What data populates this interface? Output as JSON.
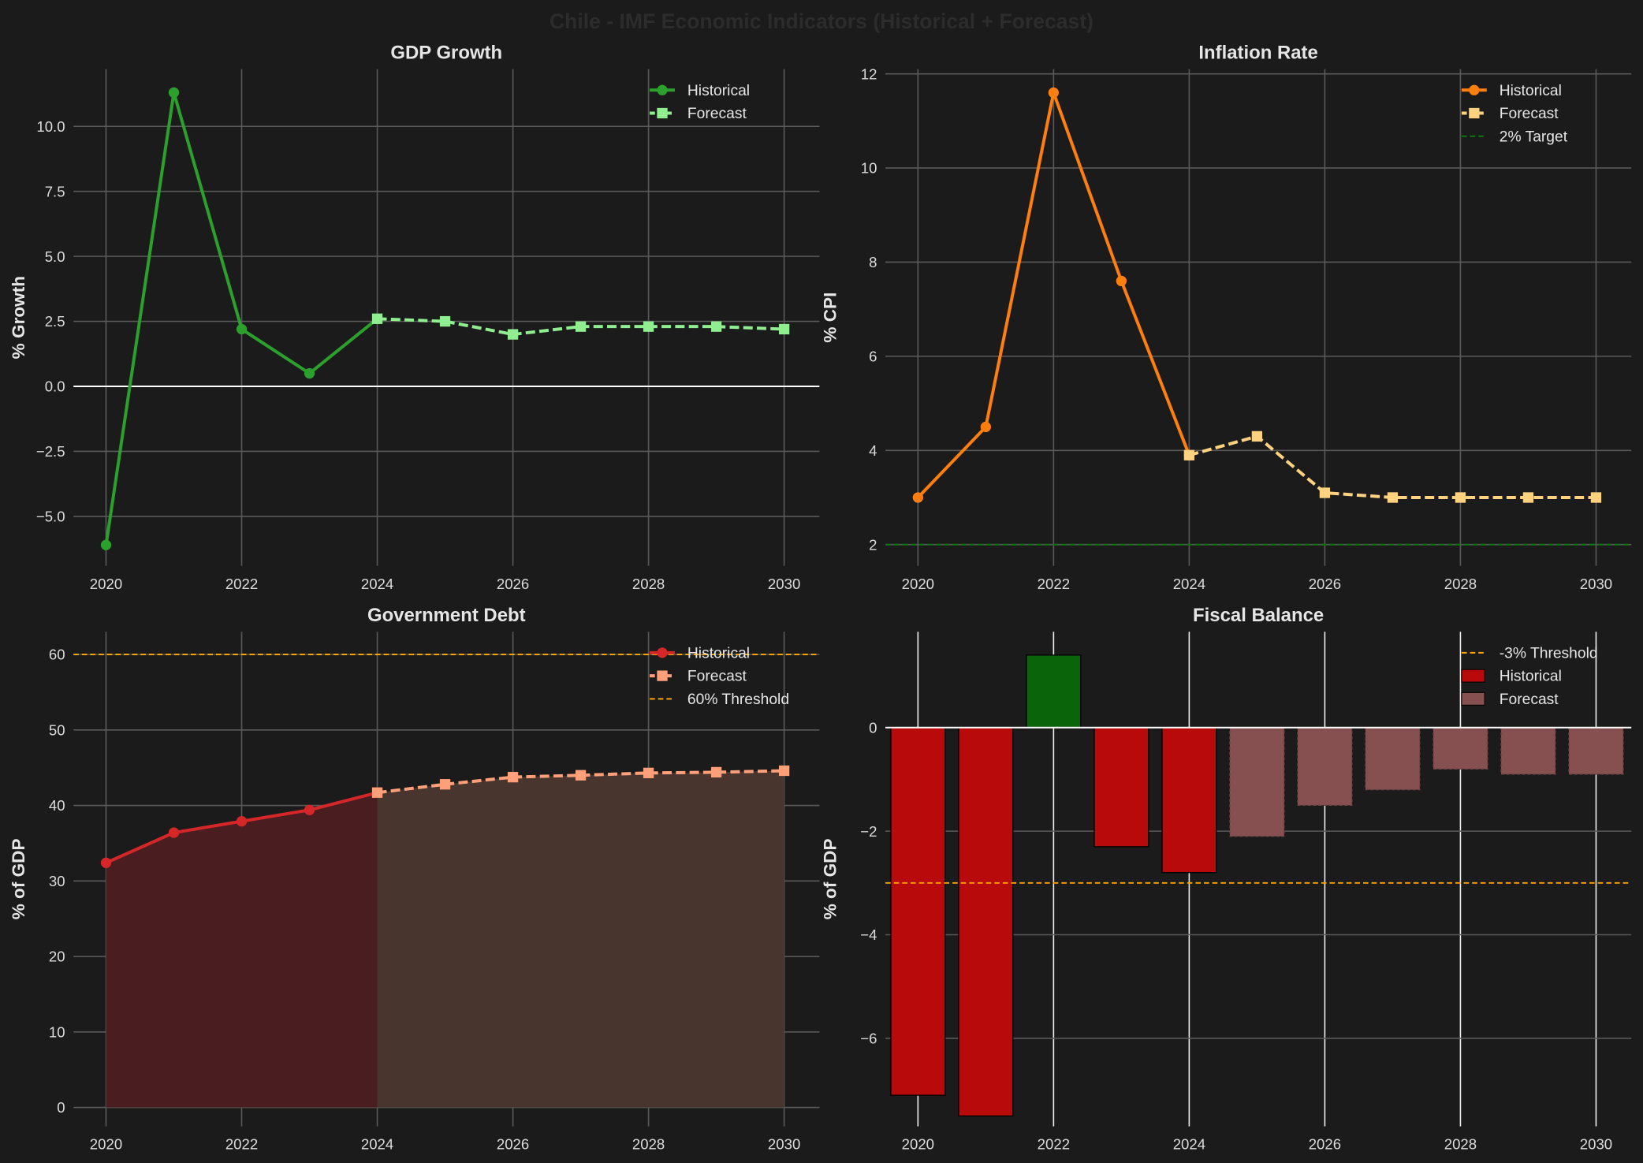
{
  "suptitle": "Chile - IMF Economic Indicators (Historical + Forecast)",
  "chart_data": [
    {
      "id": "gdp",
      "type": "line",
      "title": "GDP Growth",
      "ylabel": "% Growth",
      "xlabel": "",
      "xlim": [
        2019.52,
        2030.52
      ],
      "ylim": [
        -6.9,
        12.2
      ],
      "xticks": [
        2020,
        2022,
        2024,
        2026,
        2028,
        2030
      ],
      "yticks": [
        -5.0,
        -2.5,
        0.0,
        2.5,
        5.0,
        7.5,
        10.0
      ],
      "ytick_decimals": 1,
      "grid": true,
      "legend": "top-right",
      "series": [
        {
          "name": "Historical",
          "style": "solid",
          "marker": "circle",
          "color": "#2ca02c",
          "x": [
            2020,
            2021,
            2022,
            2023,
            2024
          ],
          "y": [
            -6.1,
            11.3,
            2.2,
            0.5,
            2.6
          ]
        },
        {
          "name": "Forecast",
          "style": "dashed",
          "marker": "square",
          "color": "#90ee90",
          "x": [
            2024,
            2025,
            2026,
            2027,
            2028,
            2029,
            2030
          ],
          "y": [
            2.6,
            2.5,
            2.0,
            2.3,
            2.3,
            2.3,
            2.2
          ]
        }
      ],
      "hlines": [
        {
          "y": 0,
          "color": "#ffffff",
          "style": "solid",
          "name": ""
        }
      ]
    },
    {
      "id": "inflation",
      "type": "line",
      "title": "Inflation Rate",
      "ylabel": "% CPI",
      "xlabel": "",
      "xlim": [
        2019.52,
        2030.52
      ],
      "ylim": [
        1.55,
        12.1
      ],
      "xticks": [
        2020,
        2022,
        2024,
        2026,
        2028,
        2030
      ],
      "yticks": [
        2,
        4,
        6,
        8,
        10,
        12
      ],
      "ytick_decimals": 0,
      "grid": true,
      "legend": "top-right",
      "series": [
        {
          "name": "Historical",
          "style": "solid",
          "marker": "circle",
          "color": "#ff7f0e",
          "x": [
            2020,
            2021,
            2022,
            2023,
            2024
          ],
          "y": [
            3.0,
            4.5,
            11.6,
            7.6,
            3.9
          ]
        },
        {
          "name": "Forecast",
          "style": "dashed",
          "marker": "square",
          "color": "#ffd27f",
          "x": [
            2024,
            2025,
            2026,
            2027,
            2028,
            2029,
            2030
          ],
          "y": [
            3.9,
            4.3,
            3.1,
            3.0,
            3.0,
            3.0,
            3.0
          ]
        }
      ],
      "hlines": [
        {
          "y": 2,
          "color": "#0a7a0a",
          "style": "dashed",
          "name": "2% Target"
        }
      ]
    },
    {
      "id": "debt",
      "type": "area",
      "title": "Government Debt",
      "ylabel": "% of GDP",
      "xlabel": "",
      "xlim": [
        2019.52,
        2030.52
      ],
      "ylim": [
        -2.5,
        63
      ],
      "xticks": [
        2020,
        2022,
        2024,
        2026,
        2028,
        2030
      ],
      "yticks": [
        0,
        10,
        20,
        30,
        40,
        50,
        60
      ],
      "ytick_decimals": 0,
      "grid": true,
      "legend": "top-right",
      "series": [
        {
          "name": "Historical",
          "style": "solid",
          "marker": "circle",
          "color": "#d62728",
          "fill": "#4a1d20",
          "x": [
            2020,
            2021,
            2022,
            2023,
            2024
          ],
          "y": [
            32.4,
            36.4,
            37.9,
            39.4,
            41.7
          ]
        },
        {
          "name": "Forecast",
          "style": "dashed",
          "marker": "square",
          "color": "#ffa07a",
          "fill": "#47352e",
          "x": [
            2024,
            2025,
            2026,
            2027,
            2028,
            2029,
            2030
          ],
          "y": [
            41.7,
            42.8,
            43.75,
            44.0,
            44.3,
            44.4,
            44.6
          ]
        }
      ],
      "hlines": [
        {
          "y": 60,
          "color": "#ffa500",
          "style": "dashed",
          "name": "60% Threshold"
        }
      ]
    },
    {
      "id": "fiscal",
      "type": "bar",
      "title": "Fiscal Balance",
      "ylabel": "% of GDP",
      "xlabel": "",
      "xlim": [
        2019.52,
        2030.52
      ],
      "ylim": [
        -7.7,
        1.85
      ],
      "xticks": [
        2020,
        2022,
        2024,
        2026,
        2028,
        2030
      ],
      "yticks": [
        -6,
        -4,
        -2,
        0
      ],
      "ytick_decimals": 0,
      "grid": true,
      "legend": "top-right",
      "categories": [
        2020,
        2021,
        2022,
        2023,
        2024,
        2025,
        2026,
        2027,
        2028,
        2029,
        2030
      ],
      "series": [
        {
          "name": "Historical",
          "color": "#b80a0a",
          "positive_color": "#0a640a",
          "x": [
            2020,
            2021,
            2022,
            2023,
            2024
          ],
          "y": [
            -7.1,
            -7.5,
            1.4,
            -2.3,
            -2.8
          ]
        },
        {
          "name": "Forecast",
          "color": "#875050",
          "x": [
            2025,
            2026,
            2027,
            2028,
            2029,
            2030
          ],
          "y": [
            -2.1,
            -1.5,
            -1.2,
            -0.8,
            -0.9,
            -0.9
          ]
        }
      ],
      "hlines": [
        {
          "y": -3,
          "color": "#ffa500",
          "style": "dashed",
          "name": "-3% Threshold"
        },
        {
          "y": 0,
          "color": "#ffffff",
          "style": "solid",
          "name": ""
        }
      ]
    }
  ]
}
